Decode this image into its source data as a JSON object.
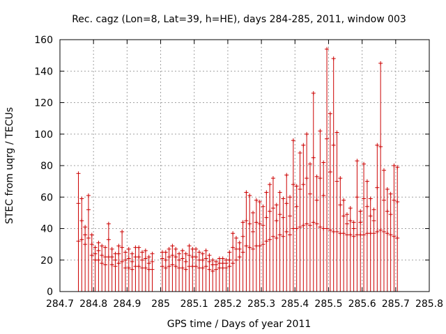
{
  "chart_data": {
    "type": "scatter",
    "title": "Rec. cagz (Lon=8, Lat=39, h=HE), days 284-285, 2011, window 003",
    "xlabel": "GPS time / Days of year 2011",
    "ylabel": "STEC from uqrg / TECUs",
    "xlim": [
      284.7,
      285.8
    ],
    "ylim": [
      0,
      160
    ],
    "x_ticks": [
      284.7,
      284.8,
      284.9,
      285,
      285.1,
      285.2,
      285.3,
      285.4,
      285.5,
      285.6,
      285.7,
      285.8
    ],
    "x_tick_labels": [
      "284.7",
      "284.8",
      "284.9",
      "285",
      "285.1",
      "285.2",
      "285.3",
      "285.4",
      "285.5",
      "285.6",
      "285.7",
      "285.8"
    ],
    "y_ticks": [
      0,
      20,
      40,
      60,
      80,
      100,
      120,
      140,
      160
    ],
    "y_tick_labels": [
      "0",
      "20",
      "40",
      "60",
      "80",
      "100",
      "120",
      "140",
      "160"
    ],
    "grid": true,
    "legend": "none",
    "color": "#cc0000",
    "series": [
      {
        "style": "error-bars",
        "x": [
          284.755,
          284.765,
          284.775,
          284.785,
          284.795,
          284.805,
          284.815,
          284.825,
          284.835,
          284.845,
          284.855,
          284.865,
          284.875,
          284.885,
          284.895,
          284.905,
          284.915,
          284.925,
          284.935,
          284.945,
          284.955,
          284.965,
          284.975,
          285.005,
          285.015,
          285.025,
          285.035,
          285.045,
          285.055,
          285.065,
          285.075,
          285.085,
          285.095,
          285.105,
          285.115,
          285.125,
          285.135,
          285.145,
          285.155,
          285.165,
          285.175,
          285.185,
          285.195,
          285.205,
          285.215,
          285.225,
          285.235,
          285.245,
          285.255,
          285.265,
          285.275,
          285.285,
          285.295,
          285.305,
          285.315,
          285.325,
          285.335,
          285.345,
          285.355,
          285.365,
          285.375,
          285.385,
          285.395,
          285.405,
          285.415,
          285.425,
          285.435,
          285.445,
          285.455,
          285.465,
          285.475,
          285.485,
          285.495,
          285.505,
          285.515,
          285.525,
          285.535,
          285.545,
          285.555,
          285.565,
          285.575,
          285.585,
          285.595,
          285.605,
          285.615,
          285.625,
          285.635,
          285.645,
          285.655,
          285.665,
          285.675,
          285.685,
          285.695,
          285.705,
          285.715,
          285.725,
          285.735
        ],
        "low": [
          0,
          0,
          0,
          0,
          0,
          0,
          0,
          0,
          0,
          0,
          0,
          0,
          0,
          0,
          0,
          0,
          0,
          0,
          0,
          0,
          0,
          0,
          0,
          0,
          0,
          0,
          0,
          0,
          0,
          0,
          0,
          0,
          0,
          0,
          0,
          0,
          0,
          0,
          0,
          0,
          0,
          0,
          0,
          0,
          0,
          0,
          0,
          0,
          0,
          0,
          0,
          0,
          0,
          0,
          0,
          0,
          0,
          0,
          0,
          0,
          0,
          0,
          0,
          0,
          0,
          0,
          0,
          0,
          0,
          0,
          0,
          0,
          0,
          0,
          0,
          0,
          0,
          0,
          0,
          0,
          0,
          0,
          0,
          0,
          0,
          0,
          0,
          0,
          0,
          0,
          0,
          0,
          0,
          0,
          0,
          0,
          0
        ],
        "high": [
          75,
          59,
          41,
          61,
          36,
          28,
          31,
          29,
          28,
          43,
          27,
          24,
          29,
          38,
          25,
          27,
          24,
          28,
          28,
          25,
          26,
          22,
          24,
          25,
          25,
          27,
          29,
          27,
          24,
          26,
          24,
          29,
          27,
          27,
          25,
          24,
          26,
          23,
          20,
          19,
          21,
          21,
          20,
          25,
          37,
          34,
          31,
          44,
          63,
          61,
          50,
          58,
          57,
          54,
          63,
          68,
          72,
          55,
          63,
          59,
          74,
          60,
          96,
          67,
          88,
          93,
          100,
          81,
          126,
          73,
          102,
          82,
          154,
          113,
          148,
          101,
          72,
          58,
          49,
          53,
          44,
          83,
          51,
          81,
          70,
          59,
          52,
          93,
          145,
          77,
          65,
          62,
          80,
          79,
          0,
          0,
          0
        ],
        "marks": [
          [
            32,
            56,
            75
          ],
          [
            33,
            45,
            59
          ],
          [
            30,
            36,
            41
          ],
          [
            34,
            52,
            61
          ],
          [
            23,
            30,
            36
          ],
          [
            20,
            24,
            28
          ],
          [
            20,
            26,
            31
          ],
          [
            18,
            23,
            29
          ],
          [
            17,
            22,
            28
          ],
          [
            22,
            33,
            43
          ],
          [
            17,
            22,
            27
          ],
          [
            16,
            20,
            24
          ],
          [
            18,
            24,
            29
          ],
          [
            19,
            28,
            38
          ],
          [
            15,
            20,
            25
          ],
          [
            15,
            21,
            27
          ],
          [
            14,
            19,
            24
          ],
          [
            16,
            22,
            28
          ],
          [
            16,
            22,
            28
          ],
          [
            15,
            20,
            25
          ],
          [
            15,
            21,
            26
          ],
          [
            14,
            18,
            22
          ],
          [
            14,
            19,
            24
          ],
          [
            16,
            21,
            25
          ],
          [
            15,
            20,
            25
          ],
          [
            16,
            22,
            27
          ],
          [
            17,
            23,
            29
          ],
          [
            16,
            22,
            27
          ],
          [
            15,
            20,
            24
          ],
          [
            15,
            21,
            26
          ],
          [
            14,
            19,
            24
          ],
          [
            16,
            23,
            29
          ],
          [
            16,
            22,
            27
          ],
          [
            16,
            22,
            27
          ],
          [
            15,
            20,
            25
          ],
          [
            15,
            20,
            24
          ],
          [
            16,
            21,
            26
          ],
          [
            14,
            19,
            23
          ],
          [
            13,
            17,
            20
          ],
          [
            14,
            17,
            19
          ],
          [
            15,
            18,
            21
          ],
          [
            15,
            18,
            21
          ],
          [
            15,
            18,
            20
          ],
          [
            16,
            20,
            25
          ],
          [
            18,
            28,
            37
          ],
          [
            20,
            27,
            34
          ],
          [
            22,
            27,
            31
          ],
          [
            25,
            35,
            44
          ],
          [
            29,
            45,
            63
          ],
          [
            28,
            43,
            61
          ],
          [
            27,
            38,
            50
          ],
          [
            29,
            44,
            58
          ],
          [
            29,
            43,
            57
          ],
          [
            30,
            42,
            54
          ],
          [
            32,
            47,
            63
          ],
          [
            33,
            51,
            68
          ],
          [
            35,
            53,
            72
          ],
          [
            34,
            45,
            55
          ],
          [
            36,
            49,
            63
          ],
          [
            35,
            47,
            59
          ],
          [
            38,
            56,
            74
          ],
          [
            36,
            48,
            60
          ],
          [
            40,
            68,
            96
          ],
          [
            40,
            54,
            67
          ],
          [
            41,
            65,
            88
          ],
          [
            42,
            68,
            93
          ],
          [
            43,
            72,
            100
          ],
          [
            42,
            62,
            81
          ],
          [
            44,
            85,
            126
          ],
          [
            43,
            58,
            73
          ],
          [
            41,
            72,
            102
          ],
          [
            40,
            61,
            82
          ],
          [
            40,
            97,
            154
          ],
          [
            39,
            76,
            113
          ],
          [
            38,
            93,
            148
          ],
          [
            38,
            70,
            101
          ],
          [
            37,
            55,
            72
          ],
          [
            37,
            48,
            58
          ],
          [
            36,
            43,
            49
          ],
          [
            36,
            45,
            53
          ],
          [
            35,
            40,
            44
          ],
          [
            36,
            60,
            83
          ],
          [
            36,
            44,
            51
          ],
          [
            36,
            59,
            81
          ],
          [
            37,
            54,
            70
          ],
          [
            37,
            48,
            59
          ],
          [
            37,
            45,
            52
          ],
          [
            38,
            66,
            93
          ],
          [
            39,
            92,
            145
          ],
          [
            38,
            58,
            77
          ],
          [
            37,
            51,
            65
          ],
          [
            36,
            49,
            62
          ],
          [
            35,
            58,
            80
          ],
          [
            34,
            57,
            79
          ],
          [
            0,
            0,
            0
          ],
          [
            0,
            0,
            0
          ],
          [
            0,
            0,
            0
          ]
        ]
      }
    ]
  }
}
